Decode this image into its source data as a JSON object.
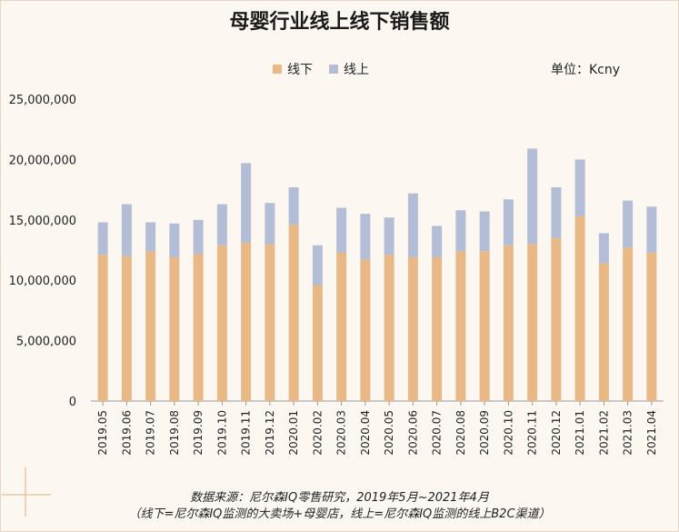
{
  "chart_data": {
    "type": "bar",
    "stacked": true,
    "title": "母婴行业线上线下销售额",
    "unit_label": "单位：Kcny",
    "categories": [
      "2019.05",
      "2019.06",
      "2019.07",
      "2019.08",
      "2019.09",
      "2019.10",
      "2019.11",
      "2019.12",
      "2020.01",
      "2020.02",
      "2020.03",
      "2020.04",
      "2020.05",
      "2020.06",
      "2020.07",
      "2020.08",
      "2020.09",
      "2020.10",
      "2020.11",
      "2020.12",
      "2021.01",
      "2021.02",
      "2021.03",
      "2021.04"
    ],
    "series": [
      {
        "name": "线下",
        "color": "#e8b987",
        "values": [
          12100000,
          12000000,
          12400000,
          11900000,
          12200000,
          12900000,
          13100000,
          13000000,
          14600000,
          9600000,
          12300000,
          11700000,
          12100000,
          11900000,
          11900000,
          12400000,
          12400000,
          12900000,
          13000000,
          13500000,
          15300000,
          11400000,
          12700000,
          12300000
        ]
      },
      {
        "name": "线上",
        "color": "#b3bdd6",
        "values": [
          2700000,
          4300000,
          2400000,
          2800000,
          2800000,
          3400000,
          6600000,
          3400000,
          3100000,
          3300000,
          3700000,
          3800000,
          3100000,
          5300000,
          2600000,
          3400000,
          3300000,
          3800000,
          7900000,
          4200000,
          4700000,
          2500000,
          3900000,
          3800000
        ]
      }
    ],
    "ylim": [
      0,
      25000000
    ],
    "yticks": [
      "0",
      "5,000,000",
      "10,000,000",
      "15,000,000",
      "20,000,000",
      "25,000,000"
    ],
    "legend_position": "top-center",
    "grid": false
  },
  "source": {
    "line1": "数据来源：尼尔森IQ零售研究，2019年5月~2021年4月",
    "line2": "（线下=尼尔森IQ监测的大卖场+母婴店，线上=尼尔森IQ监测的线上B2C渠道）"
  }
}
